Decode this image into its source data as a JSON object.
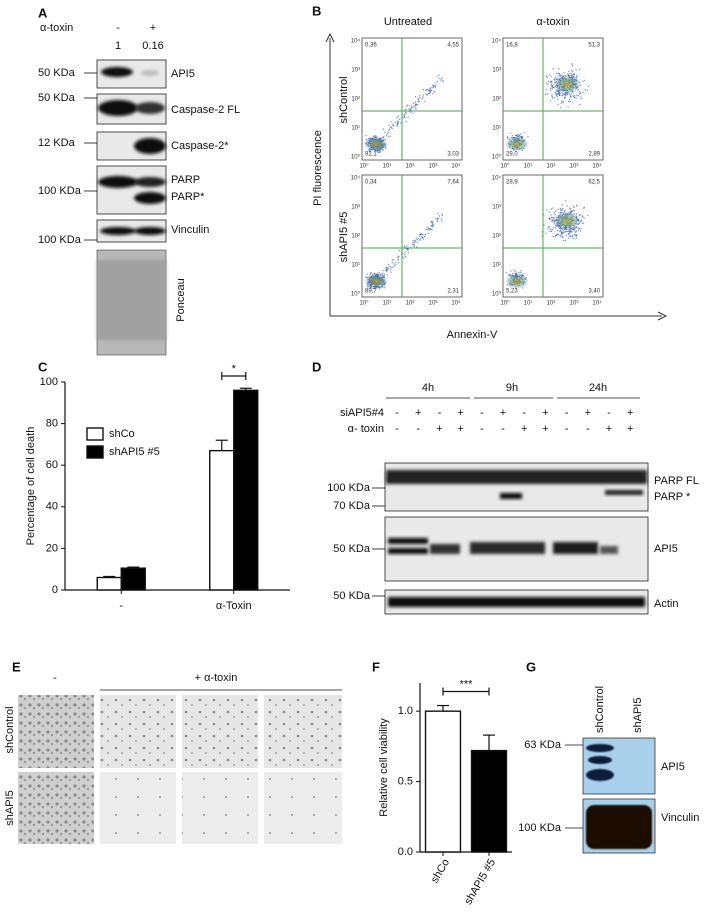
{
  "panel_labels": [
    "A",
    "B",
    "C",
    "D",
    "E",
    "F",
    "G"
  ],
  "panel_A": {
    "treatment_label": "α-toxin",
    "lanes": [
      "-",
      "+"
    ],
    "ratios": [
      1,
      0.16
    ],
    "markers": [
      "50 KDa",
      "50 KDa",
      "12 KDa",
      "100 KDa",
      "100 KDa"
    ],
    "proteins": [
      "API5",
      "Caspase-2 FL",
      "Caspase-2*",
      "PARP",
      "PARP*",
      "Vinculin",
      "Ponceau"
    ]
  },
  "panel_B": {
    "columns": [
      "Untreated",
      "α-toxin"
    ],
    "rows": [
      "shControl",
      "shAPI5 #5"
    ],
    "y_label": "PI fluorescence",
    "x_label": "Annexin-V",
    "axis_ticks": [
      "10⁰",
      "10¹",
      "10²",
      "10³",
      "10⁴"
    ],
    "plots": [
      [
        "0,36",
        "4,55",
        "92,1",
        "3,03"
      ],
      [
        "16,8",
        "51,3",
        "29,0",
        "2,89"
      ],
      [
        "0,34",
        "7,64",
        "89,7",
        "2,31"
      ],
      [
        "28,9",
        "62,5",
        "5,23",
        "3,40"
      ]
    ]
  },
  "panel_D": {
    "timepoints": [
      "4h",
      "9h",
      "24h"
    ],
    "row_labels": [
      "siAPI5#4",
      "α- toxin"
    ],
    "siAPI5": [
      "-",
      "+",
      "-",
      "+",
      "-",
      "+",
      "-",
      "+",
      "-",
      "+",
      "-",
      "+"
    ],
    "toxin": [
      "-",
      "-",
      "+",
      "+",
      "-",
      "-",
      "+",
      "+",
      "-",
      "-",
      "+",
      "+"
    ],
    "markers": [
      "100 KDa",
      "70 KDa",
      "50 KDa",
      "50 KDa"
    ],
    "proteins": [
      "PARP FL",
      "PARP *",
      "API5",
      "Actin"
    ]
  },
  "panel_E": {
    "conditions": [
      "-",
      "+ α-toxin"
    ],
    "rows": [
      "shControl",
      "shAPI5"
    ]
  },
  "panel_G": {
    "lanes": [
      "shControl",
      "shAPI5"
    ],
    "markers": [
      "63 KDa",
      "100 KDa"
    ],
    "proteins": [
      "API5",
      "Vinculin"
    ]
  },
  "chart_data": [
    {
      "type": "bar",
      "y_label": "Percentage of cell death",
      "categories": [
        "-",
        "α-Toxin"
      ],
      "series": [
        {
          "name": "shCo",
          "color": "#ffffff",
          "values": [
            6,
            67
          ],
          "errors": [
            0.5,
            5
          ]
        },
        {
          "name": "shAPI5 #5",
          "color": "#000000",
          "values": [
            10.5,
            96
          ],
          "errors": [
            0.5,
            1
          ]
        }
      ],
      "ylim": [
        0,
        100
      ],
      "yticks": [
        0,
        20,
        40,
        60,
        80,
        100
      ],
      "legend": "upper left",
      "annotation": "*"
    },
    {
      "type": "bar",
      "y_label": "Relative cell viability",
      "categories": [
        "shCo",
        "shAPI5 #5"
      ],
      "values": [
        1.0,
        0.72
      ],
      "errors": [
        0.04,
        0.11
      ],
      "colors": [
        "#ffffff",
        "#000000"
      ],
      "ylim": [
        0,
        1.2
      ],
      "yticks": [
        {
          "value": 0,
          "label": "0.0"
        },
        {
          "value": 0.5,
          "label": "0.5"
        },
        {
          "value": 1,
          "label": "1.0"
        }
      ],
      "annotation": "***"
    }
  ]
}
